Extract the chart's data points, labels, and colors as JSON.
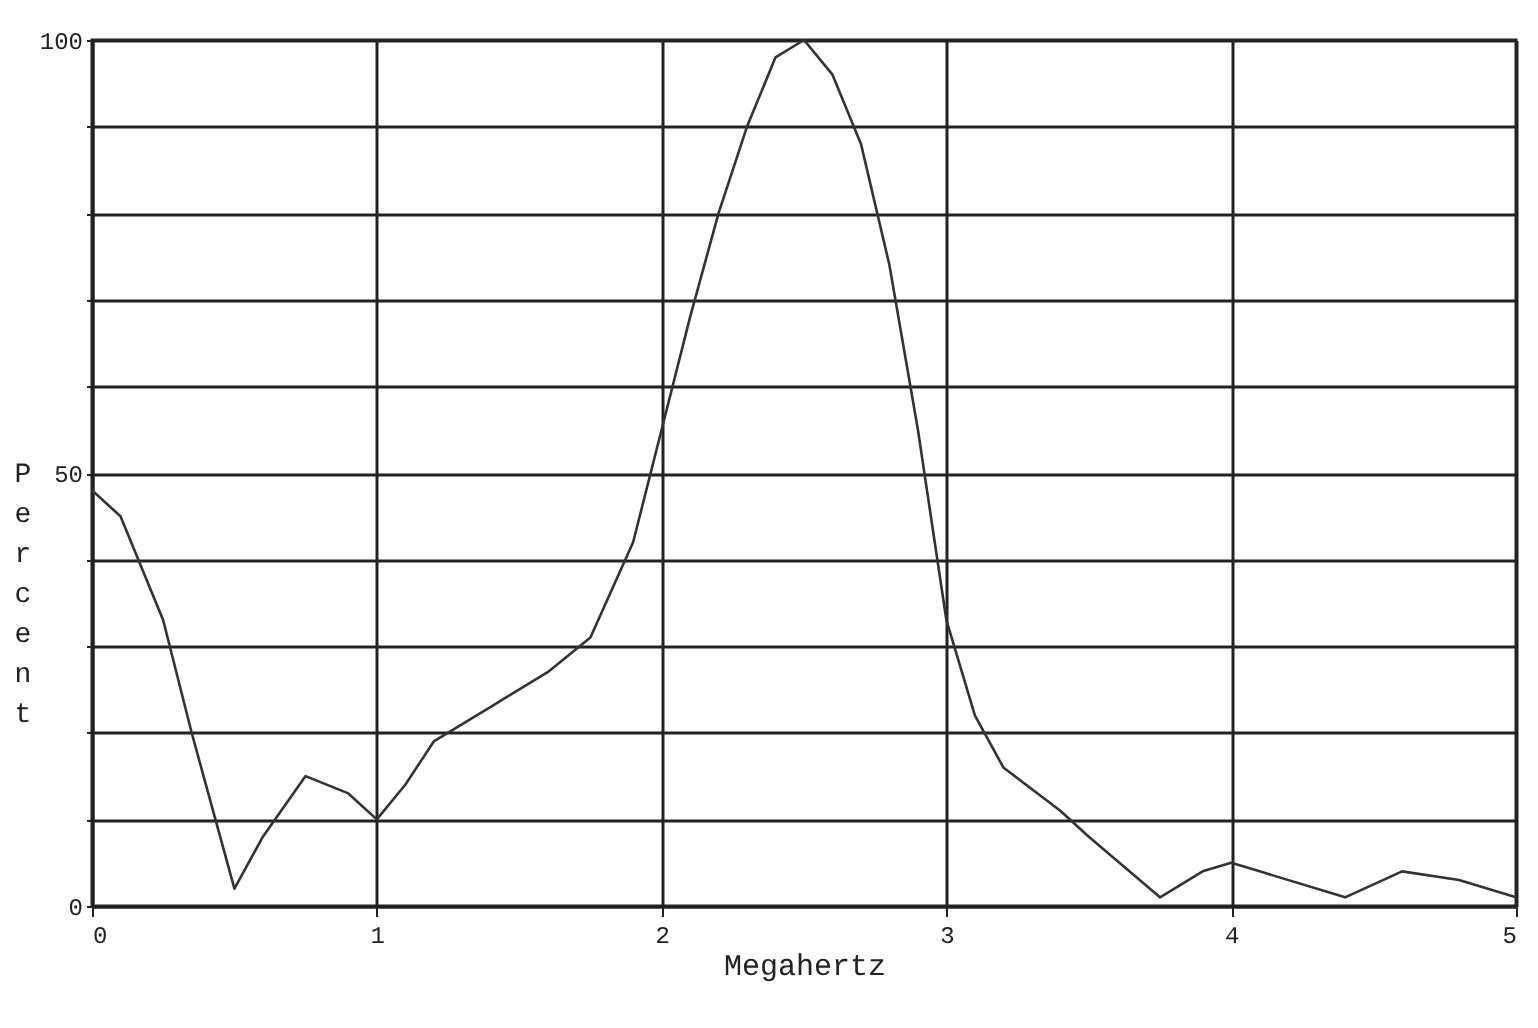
{
  "chart_data": {
    "type": "line",
    "xlabel": "Megahertz",
    "ylabel": "Percent",
    "x": [
      0,
      0.1,
      0.25,
      0.35,
      0.5,
      0.6,
      0.75,
      0.9,
      1.0,
      1.1,
      1.2,
      1.4,
      1.6,
      1.75,
      1.9,
      2.0,
      2.1,
      2.2,
      2.3,
      2.4,
      2.5,
      2.6,
      2.7,
      2.8,
      2.9,
      3.0,
      3.1,
      3.2,
      3.4,
      3.5,
      3.75,
      3.9,
      4.0,
      4.1,
      4.4,
      4.6,
      4.8,
      5.0
    ],
    "series": [
      {
        "color": "#333333",
        "values": [
          48,
          45,
          33,
          20,
          2,
          8,
          15,
          13,
          10,
          14,
          19,
          23,
          27,
          31,
          42,
          55,
          68,
          80,
          90,
          98,
          100,
          96,
          88,
          74,
          55,
          33,
          22,
          16,
          11,
          8,
          1,
          4,
          5,
          4,
          1,
          4,
          3,
          1
        ]
      }
    ],
    "xlim": [
      0,
      5
    ],
    "ylim": [
      0,
      100
    ],
    "xticks": [
      0,
      1,
      2,
      3,
      4,
      5
    ],
    "yticks": [
      0,
      {
        "value": 10,
        "label": null
      },
      {
        "value": 20,
        "label": null
      },
      {
        "value": 30,
        "label": null
      },
      {
        "value": 40,
        "label": null
      },
      50,
      {
        "value": 60,
        "label": null
      },
      {
        "value": 70,
        "label": null
      },
      {
        "value": 80,
        "label": null
      },
      {
        "value": 90,
        "label": null
      },
      100
    ],
    "grid": true,
    "marker": "none",
    "line_style": "solid"
  }
}
